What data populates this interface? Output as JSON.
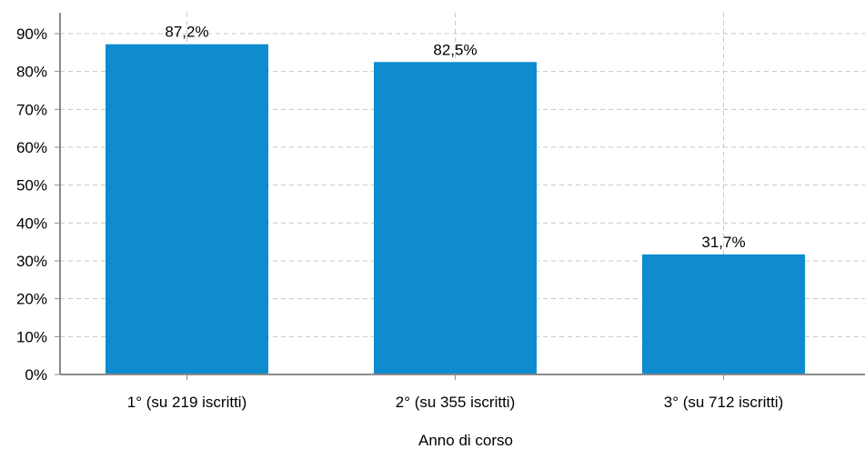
{
  "chart_data": {
    "type": "bar",
    "categories": [
      "1° (su 219 iscritti)",
      "2° (su 355 iscritti)",
      "3° (su 712 iscritti)"
    ],
    "values": [
      87.2,
      82.5,
      31.7
    ],
    "data_labels": [
      "87,2%",
      "82,5%",
      "31,7%"
    ],
    "title": "",
    "xlabel": "Anno di corso",
    "ylabel": "",
    "ylim": [
      0,
      90
    ],
    "yticks": [
      0,
      10,
      20,
      30,
      40,
      50,
      60,
      70,
      80,
      90
    ],
    "ytick_labels": [
      "0%",
      "10%",
      "20%",
      "30%",
      "40%",
      "50%",
      "60%",
      "70%",
      "80%",
      "90%"
    ],
    "grid": true,
    "legend": "none",
    "bar_color": "#0e8ccf"
  }
}
